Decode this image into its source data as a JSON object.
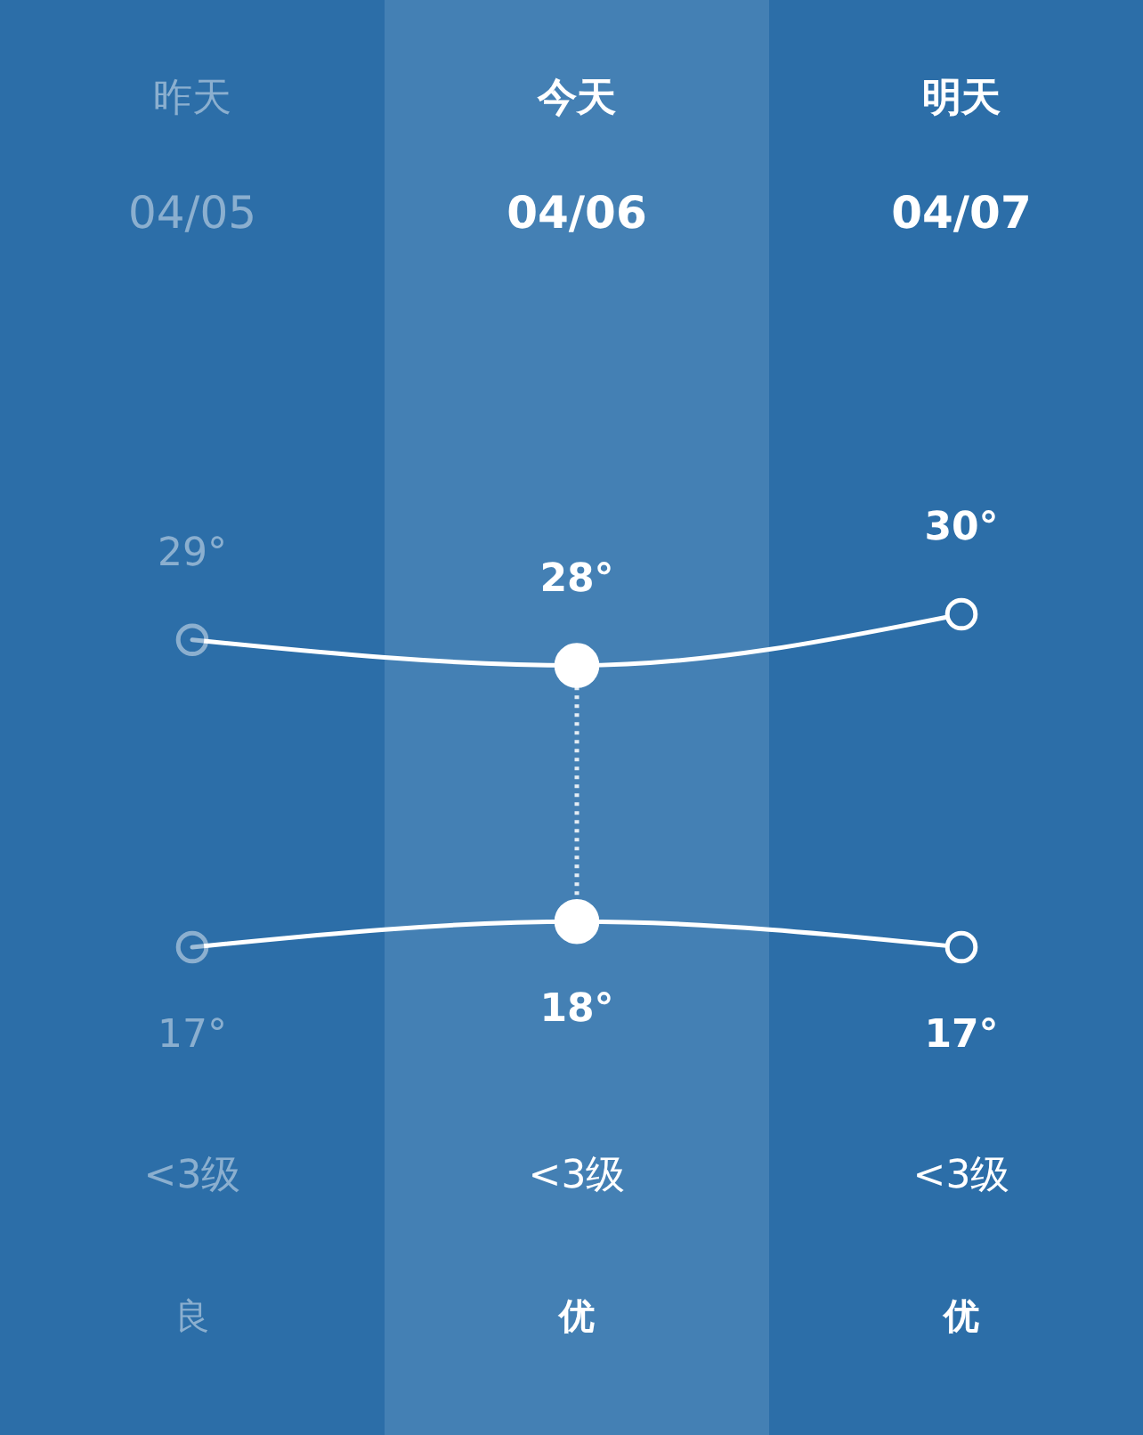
{
  "chart_data": {
    "type": "line",
    "categories": [
      "昨天",
      "今天",
      "明天"
    ],
    "series": [
      {
        "color": "#ffffff",
        "values": [
          29,
          28,
          30
        ],
        "value_labels": [
          "29°",
          "28°",
          "30°"
        ]
      },
      {
        "color": "#ffffff",
        "values": [
          17,
          18,
          17
        ],
        "value_labels": [
          "17°",
          "18°",
          "17°"
        ]
      }
    ],
    "marker": "circle",
    "tick_labels": "x",
    "bands": [
      {
        "axis": "x",
        "from": "今天",
        "to": "今天",
        "color": "#4480b4"
      }
    ],
    "ref_lines": [
      {
        "axis": "x",
        "value": "今天",
        "line_style": "dotted",
        "color": "#ffffff"
      }
    ],
    "annotations": [
      "04/05",
      "04/06",
      "04/07",
      "<3级",
      "<3级",
      "<3级",
      "良",
      "优",
      "优"
    ]
  }
}
